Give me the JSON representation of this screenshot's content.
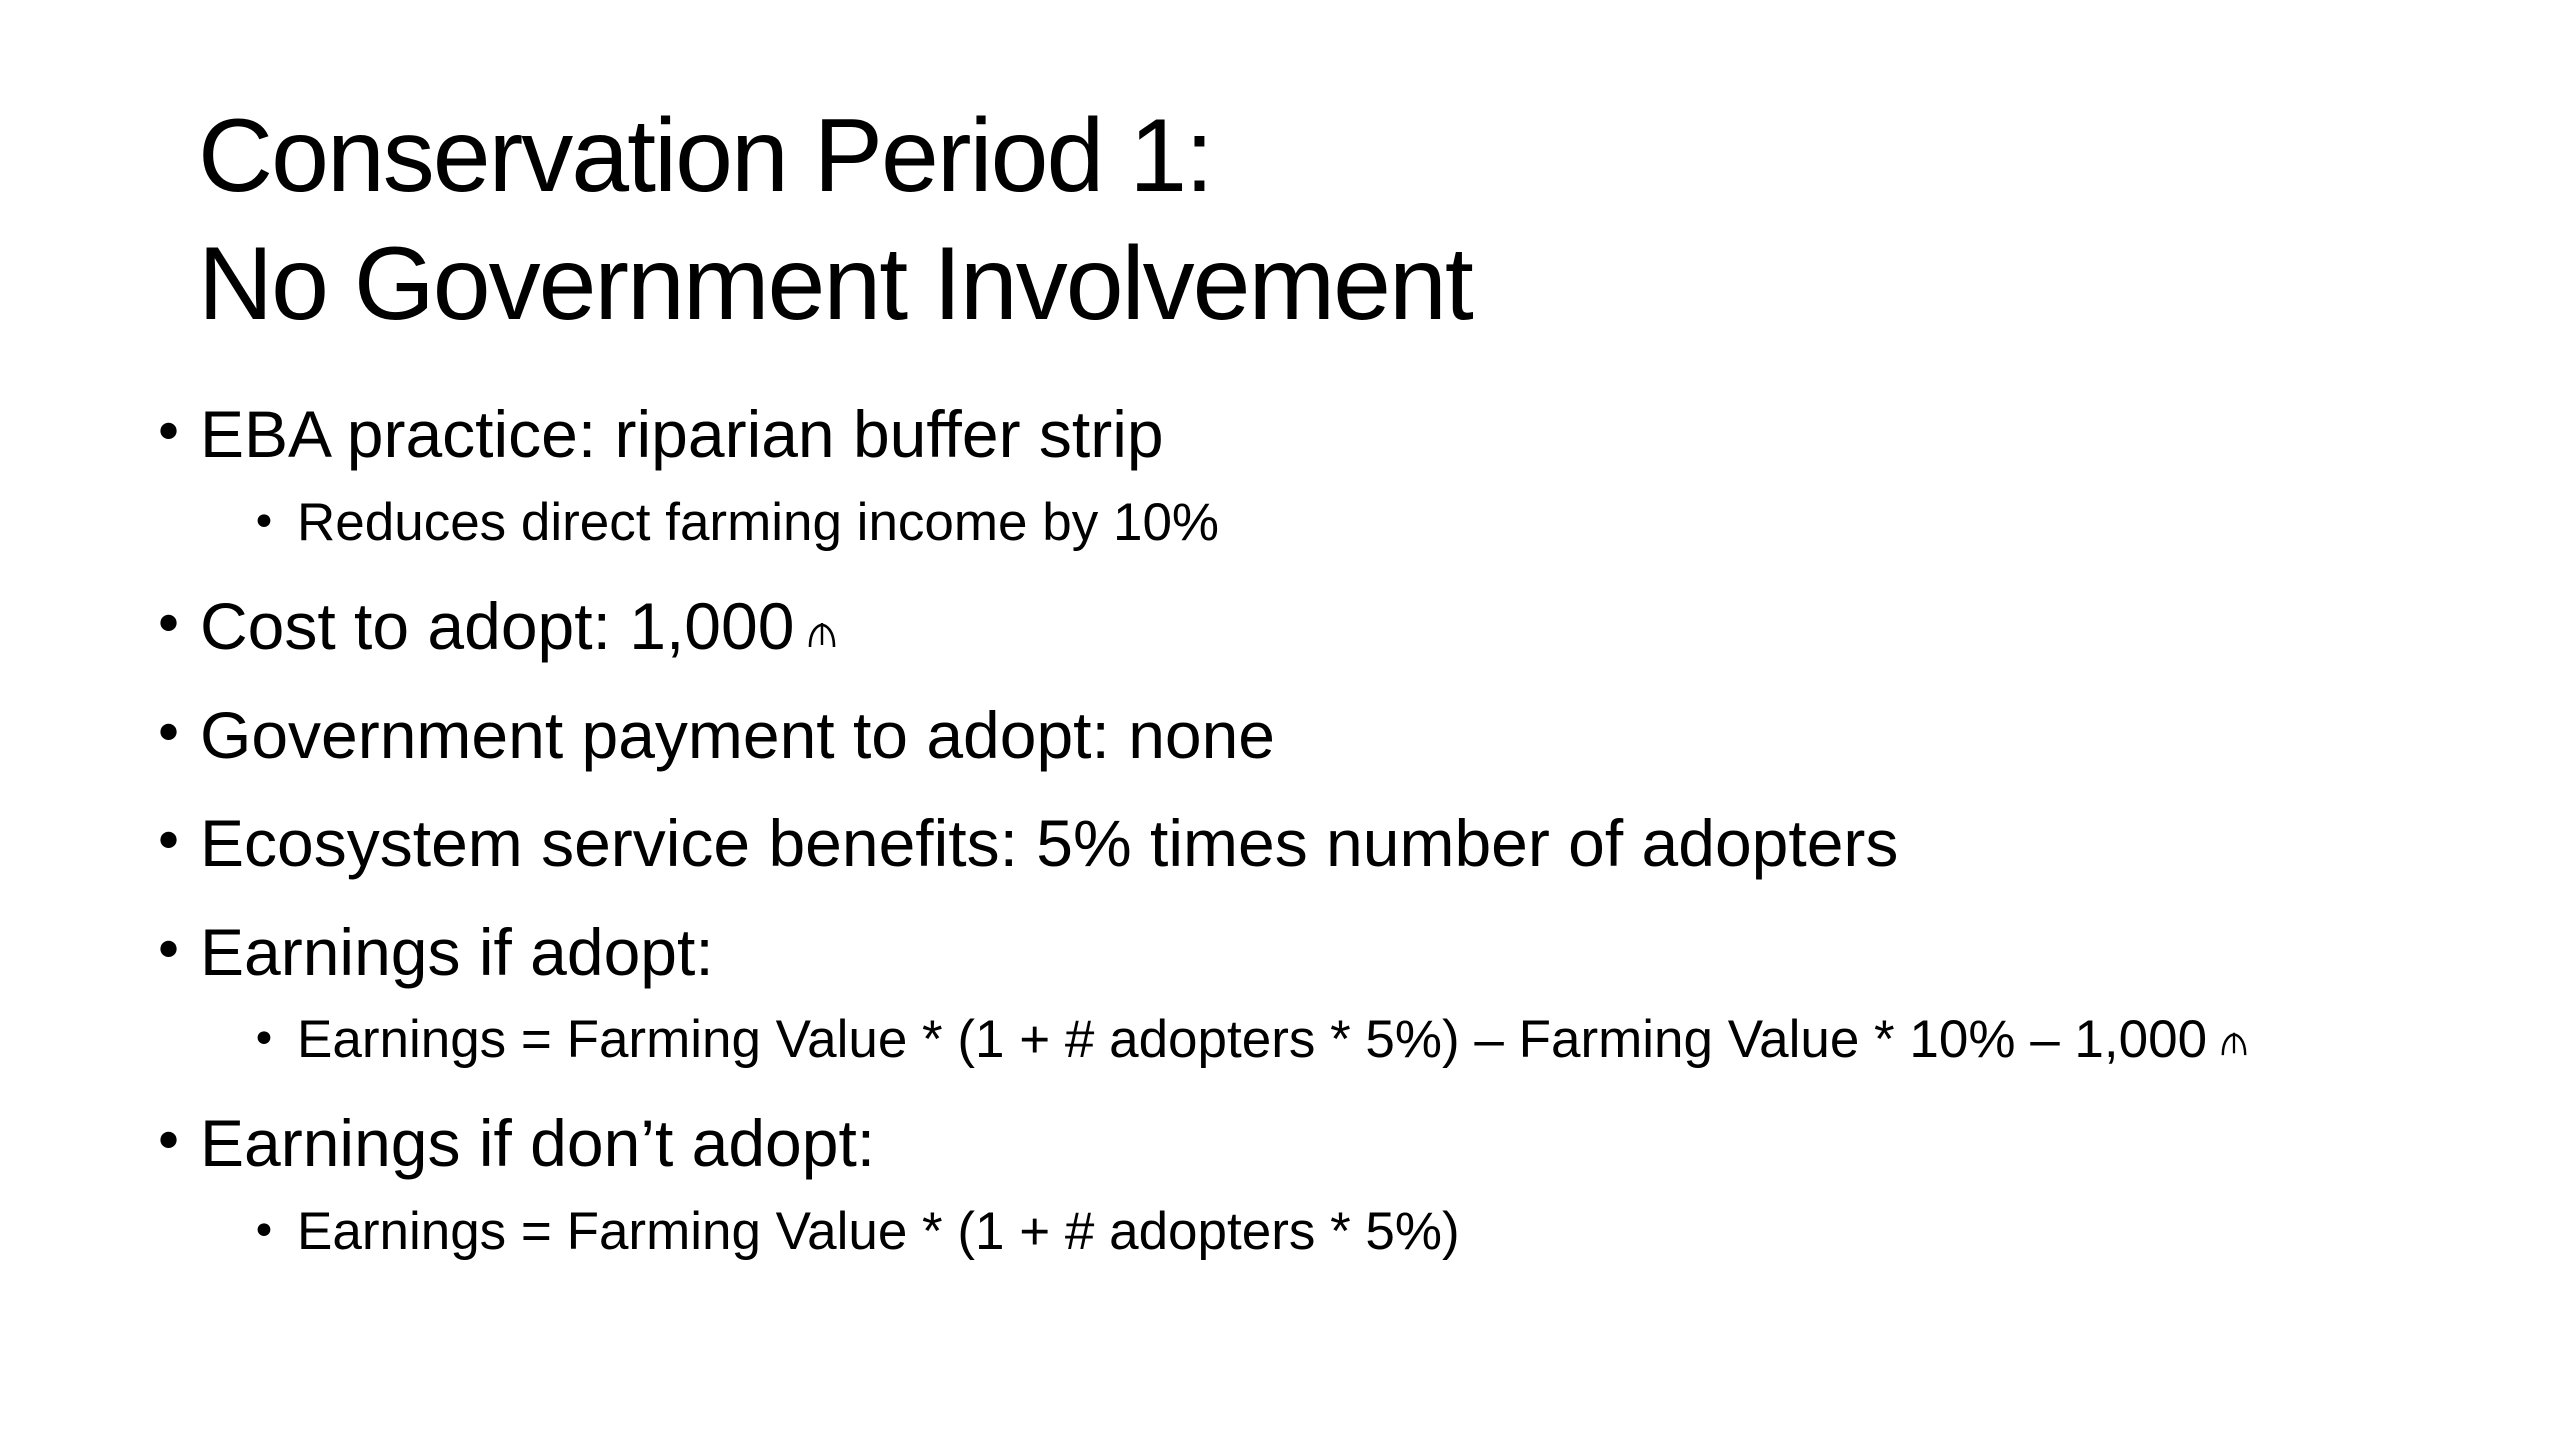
{
  "slide": {
    "title_line1": "Conservation Period 1:",
    "title_line2": "No Government Involvement",
    "bullets": [
      {
        "text": "EBA practice: riparian buffer strip"
      },
      {
        "text": "Reduces direct farming income by 10%"
      },
      {
        "text": "Cost to adopt: 1,000",
        "currency_icon": "currency-symbol-icon"
      },
      {
        "text": "Government payment to adopt: none"
      },
      {
        "text": "Ecosystem service benefits: 5% times number of adopters"
      },
      {
        "text": "Earnings if adopt:"
      },
      {
        "text": "Earnings = Farming Value * (1 + # adopters * 5%) – Farming Value * 10% – 1,000",
        "currency_icon": "currency-symbol-icon"
      },
      {
        "text": "Earnings if don’t adopt:"
      },
      {
        "text": "Earnings = Farming Value * (1 + # adopters * 5%)"
      }
    ],
    "bullet_glyph": "•"
  }
}
